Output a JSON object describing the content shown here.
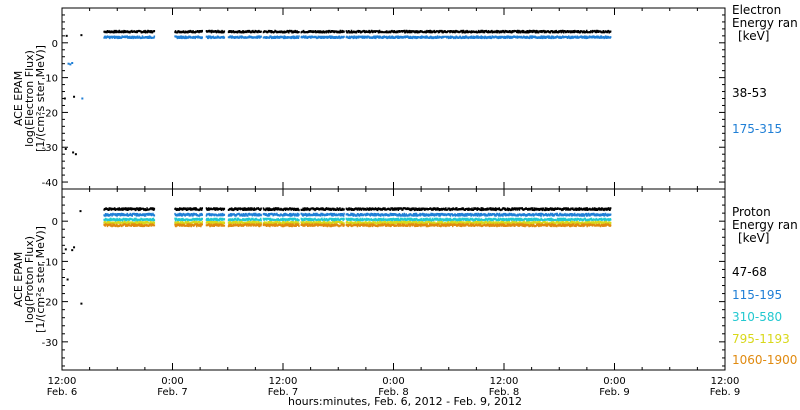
{
  "chart_data": [
    {
      "type": "scatter",
      "ylabel_lines": [
        "ACE EPAM",
        "log(Electron Flux)",
        "[1/(cm²s ster MeV)]"
      ],
      "ylim": [
        -42,
        10
      ],
      "yticks": [
        0,
        -10,
        -20,
        -30,
        -40
      ],
      "legend_title_lines": [
        "Electron",
        "Energy ran",
        "[keV]"
      ],
      "series": [
        {
          "name": "38-53",
          "color": "#000000",
          "level": 3.2
        },
        {
          "name": "175-315",
          "color": "#1f7fd6",
          "level": 1.6
        }
      ],
      "gaps": [
        [
          10.0,
          12.2
        ],
        [
          15.2,
          15.6
        ],
        [
          17.6,
          18.0
        ],
        [
          21.6,
          21.8
        ],
        [
          25.7,
          25.9
        ],
        [
          30.6,
          30.8
        ]
      ],
      "early_points": [
        {
          "x": 0.4,
          "y": 2.0,
          "s": 0
        },
        {
          "x": 0.6,
          "y": -6.0,
          "s": 1
        },
        {
          "x": 0.8,
          "y": -6.2,
          "s": 1
        },
        {
          "x": 1.0,
          "y": -5.8,
          "s": 1
        },
        {
          "x": 0.2,
          "y": -16.0,
          "s": 0
        },
        {
          "x": 1.2,
          "y": -15.5,
          "s": 0
        },
        {
          "x": 2.1,
          "y": -16.0,
          "s": 1
        },
        {
          "x": 0.3,
          "y": -30.5,
          "s": 0
        },
        {
          "x": 1.1,
          "y": -31.5,
          "s": 0
        },
        {
          "x": 1.4,
          "y": -32.0,
          "s": 0
        },
        {
          "x": 2.0,
          "y": 2.2,
          "s": 0
        }
      ]
    },
    {
      "type": "scatter",
      "ylabel_lines": [
        "ACE EPAM",
        "log(Proton Flux)",
        "[1/(cm²s ster MeV)]"
      ],
      "ylim": [
        -37,
        8
      ],
      "yticks": [
        0,
        -10,
        -20,
        -30
      ],
      "legend_title_lines": [
        "Proton",
        "Energy ran",
        "[keV]"
      ],
      "series": [
        {
          "name": "47-68",
          "color": "#000000",
          "level": 3.0
        },
        {
          "name": "115-195",
          "color": "#1f7fd6",
          "level": 1.6
        },
        {
          "name": "310-580",
          "color": "#22c8d0",
          "level": 0.4
        },
        {
          "name": "795-1193",
          "color": "#d8d81a",
          "level": -0.4
        },
        {
          "name": "1060-1900",
          "color": "#e08a10",
          "level": -1.0
        }
      ],
      "gaps": [
        [
          10.0,
          12.2
        ],
        [
          15.2,
          15.6
        ],
        [
          17.6,
          18.0
        ],
        [
          21.6,
          21.8
        ],
        [
          25.7,
          25.9
        ],
        [
          30.6,
          30.8
        ]
      ],
      "early_points": [
        {
          "x": 0.3,
          "y": -7.0,
          "s": 0
        },
        {
          "x": 1.0,
          "y": -7.2,
          "s": 0
        },
        {
          "x": 1.2,
          "y": -6.5,
          "s": 0
        },
        {
          "x": 0.5,
          "y": -14.5,
          "s": 0
        },
        {
          "x": 2.0,
          "y": -20.5,
          "s": 0
        },
        {
          "x": 1.9,
          "y": 2.5,
          "s": 0
        }
      ]
    }
  ],
  "x_axis": {
    "range_hours": [
      0,
      72
    ],
    "data_range_hours": [
      4.5,
      59.5
    ],
    "ticks": [
      {
        "h": 0,
        "time": "12:00",
        "date": "Feb. 6"
      },
      {
        "h": 12,
        "time": "0:00",
        "date": "Feb. 7"
      },
      {
        "h": 24,
        "time": "12:00",
        "date": "Feb. 7"
      },
      {
        "h": 36,
        "time": "0:00",
        "date": "Feb. 8"
      },
      {
        "h": 48,
        "time": "12:00",
        "date": "Feb. 8"
      },
      {
        "h": 60,
        "time": "0:00",
        "date": "Feb. 9"
      },
      {
        "h": 72,
        "time": "12:00",
        "date": "Feb. 9"
      }
    ],
    "label": "hours:minutes, Feb.  6, 2012 - Feb.  9, 2012"
  }
}
